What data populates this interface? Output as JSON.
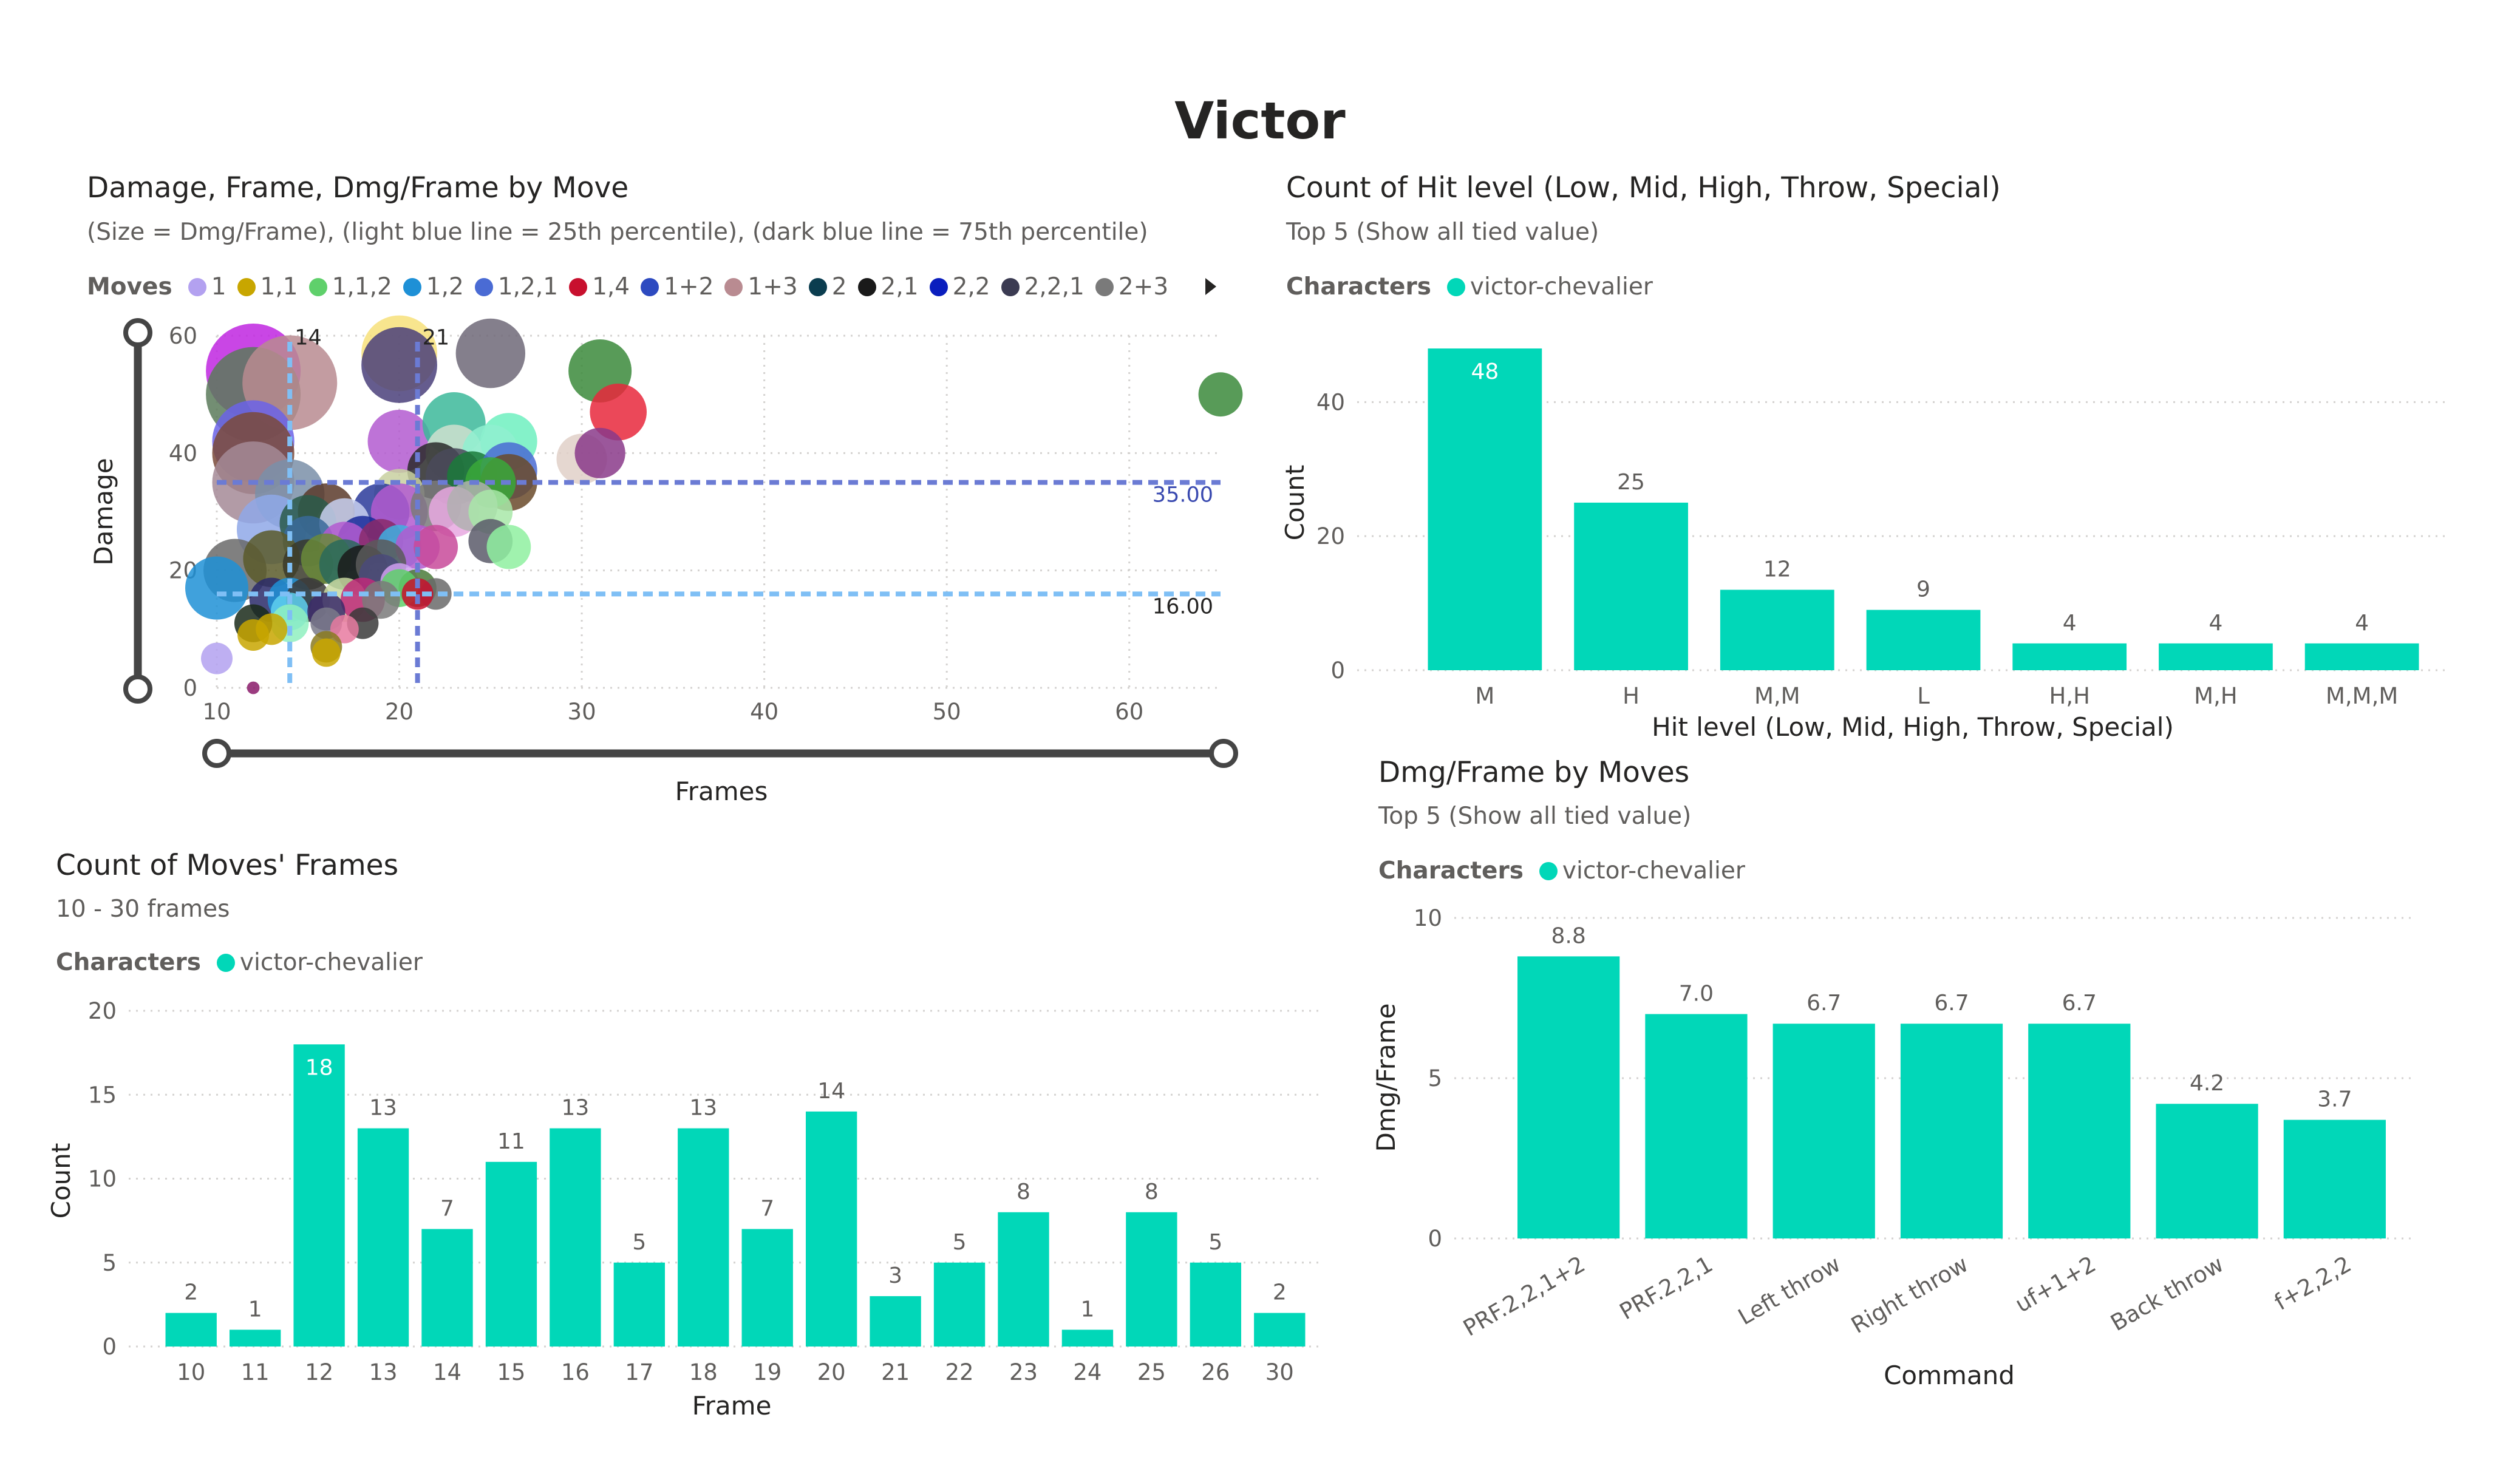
{
  "page_title": "Victor",
  "colors": {
    "teal": "#01d7b8",
    "grid": "#c8c6c4",
    "text": "#605e5c",
    "dark": "#252423",
    "light_blue": "#7fbff5",
    "dark_blue": "#6b7bd4"
  },
  "chart_data": [
    {
      "type": "scatter",
      "title": "Damage, Frame, Dmg/Frame by Move",
      "subtitle": "(Size = Dmg/Frame), (light blue line = 25th percentile), (dark blue line = 75th percentile)",
      "xlabel": "Frames",
      "ylabel": "Damage",
      "xlim": [
        10,
        65
      ],
      "ylim": [
        0,
        60
      ],
      "xticks": [
        "10",
        "20",
        "30",
        "40",
        "50",
        "60"
      ],
      "yticks": [
        "0",
        "20",
        "40",
        "60"
      ],
      "legend_title": "Moves",
      "legend": [
        {
          "name": "1",
          "color": "#b3a1f0"
        },
        {
          "name": "1,1",
          "color": "#c8a600"
        },
        {
          "name": "1,1,2",
          "color": "#5fd06b"
        },
        {
          "name": "1,2",
          "color": "#1e90d6"
        },
        {
          "name": "1,2,1",
          "color": "#4a6bd4"
        },
        {
          "name": "1,4",
          "color": "#c8102e"
        },
        {
          "name": "1+2",
          "color": "#2d4ac0"
        },
        {
          "name": "1+3",
          "color": "#b98b91"
        },
        {
          "name": "2",
          "color": "#0b3d4f"
        },
        {
          "name": "2,1",
          "color": "#1a1a1a"
        },
        {
          "name": "2,2",
          "color": "#0a1ebe"
        },
        {
          "name": "2,2,1",
          "color": "#3b3b52"
        },
        {
          "name": "2+3",
          "color": "#7a7a7a"
        }
      ],
      "reference_lines": [
        {
          "axis": "x",
          "value": 14,
          "label": "14",
          "color": "#7fbff5"
        },
        {
          "axis": "x",
          "value": 21,
          "label": "21",
          "color": "#6b7bd4"
        },
        {
          "axis": "y",
          "value": 35,
          "label": "35.00",
          "color": "#6b7bd4"
        },
        {
          "axis": "y",
          "value": 16,
          "label": "16.00",
          "color": "#7fbff5"
        }
      ],
      "points": [
        {
          "x": 12,
          "y": 54,
          "r": 3.0,
          "c": "#c026e0"
        },
        {
          "x": 12,
          "y": 50,
          "r": 3.0,
          "c": "#5b7a5a"
        },
        {
          "x": 14,
          "y": 52,
          "r": 3.0,
          "c": "#b98b91"
        },
        {
          "x": 12,
          "y": 42,
          "r": 2.6,
          "c": "#6b63e8"
        },
        {
          "x": 12,
          "y": 40,
          "r": 2.6,
          "c": "#7a4a3a"
        },
        {
          "x": 12,
          "y": 35,
          "r": 2.6,
          "c": "#a48a96"
        },
        {
          "x": 14,
          "y": 33,
          "r": 2.2,
          "c": "#7a8fa8"
        },
        {
          "x": 13,
          "y": 27,
          "r": 2.2,
          "c": "#8fa8e8"
        },
        {
          "x": 11,
          "y": 20,
          "r": 2.0,
          "c": "#6a6a6a"
        },
        {
          "x": 10,
          "y": 17,
          "r": 2.0,
          "c": "#1e90d6"
        },
        {
          "x": 10,
          "y": 5,
          "r": 1.0,
          "c": "#b3a1f0"
        },
        {
          "x": 20,
          "y": 57,
          "r": 2.4,
          "c": "#f7e07a"
        },
        {
          "x": 20,
          "y": 55,
          "r": 2.4,
          "c": "#4a3f7a"
        },
        {
          "x": 25,
          "y": 57,
          "r": 2.2,
          "c": "#6e6878"
        },
        {
          "x": 31,
          "y": 54,
          "r": 2.0,
          "c": "#3b8a3b"
        },
        {
          "x": 32,
          "y": 47,
          "r": 1.8,
          "c": "#e8283c"
        },
        {
          "x": 65,
          "y": 50,
          "r": 1.4,
          "c": "#3b8a3b"
        },
        {
          "x": 20,
          "y": 42,
          "r": 2.0,
          "c": "#b35ad0"
        },
        {
          "x": 23,
          "y": 45,
          "r": 2.0,
          "c": "#3cb89a"
        },
        {
          "x": 23,
          "y": 40,
          "r": 1.8,
          "c": "#cfe0cf"
        },
        {
          "x": 26,
          "y": 42,
          "r": 1.8,
          "c": "#6ef0c0"
        },
        {
          "x": 25,
          "y": 40,
          "r": 1.8,
          "c": "#8ff0d0"
        },
        {
          "x": 30,
          "y": 39,
          "r": 1.6,
          "c": "#e0d0c8"
        },
        {
          "x": 31,
          "y": 40,
          "r": 1.6,
          "c": "#8a3a8a"
        },
        {
          "x": 22,
          "y": 37,
          "r": 1.8,
          "c": "#2a2a2a"
        },
        {
          "x": 23,
          "y": 36,
          "r": 1.8,
          "c": "#4a4a5a"
        },
        {
          "x": 24,
          "y": 36,
          "r": 1.6,
          "c": "#1a7a3a"
        },
        {
          "x": 26,
          "y": 37,
          "r": 1.8,
          "c": "#4a6bd4"
        },
        {
          "x": 26,
          "y": 35,
          "r": 1.8,
          "c": "#6a4a2a"
        },
        {
          "x": 25,
          "y": 35,
          "r": 1.6,
          "c": "#3aa83a"
        },
        {
          "x": 20,
          "y": 33,
          "r": 1.6,
          "c": "#c8d0a0"
        },
        {
          "x": 19,
          "y": 30,
          "r": 1.8,
          "c": "#2a3a9a"
        },
        {
          "x": 20,
          "y": 30,
          "r": 1.8,
          "c": "#b35ad0"
        },
        {
          "x": 22,
          "y": 31,
          "r": 1.6,
          "c": "#7a7a7a"
        },
        {
          "x": 23,
          "y": 30,
          "r": 1.6,
          "c": "#e8a8e0"
        },
        {
          "x": 24,
          "y": 31,
          "r": 1.6,
          "c": "#b0b0b0"
        },
        {
          "x": 25,
          "y": 30,
          "r": 1.4,
          "c": "#a8e8a8"
        },
        {
          "x": 25,
          "y": 25,
          "r": 1.4,
          "c": "#5a5a6a"
        },
        {
          "x": 26,
          "y": 24,
          "r": 1.4,
          "c": "#8ff0a0"
        },
        {
          "x": 16,
          "y": 30,
          "r": 1.8,
          "c": "#5a3a2a"
        },
        {
          "x": 15,
          "y": 28,
          "r": 1.8,
          "c": "#2a5a4a"
        },
        {
          "x": 17,
          "y": 28,
          "r": 1.6,
          "c": "#c8d0f0"
        },
        {
          "x": 15,
          "y": 25,
          "r": 1.6,
          "c": "#3a6a9a"
        },
        {
          "x": 18,
          "y": 25,
          "r": 1.6,
          "c": "#1a2a9a"
        },
        {
          "x": 17,
          "y": 24,
          "r": 1.6,
          "c": "#b35ad0"
        },
        {
          "x": 19,
          "y": 25,
          "r": 1.4,
          "c": "#8a2a6a"
        },
        {
          "x": 20,
          "y": 24,
          "r": 1.4,
          "c": "#3fb0e0"
        },
        {
          "x": 21,
          "y": 24,
          "r": 1.4,
          "c": "#b35ad0"
        },
        {
          "x": 22,
          "y": 24,
          "r": 1.4,
          "c": "#c84a9a"
        },
        {
          "x": 13,
          "y": 22,
          "r": 1.8,
          "c": "#5a5a2a"
        },
        {
          "x": 15,
          "y": 21,
          "r": 1.6,
          "c": "#3a3a2a"
        },
        {
          "x": 16,
          "y": 22,
          "r": 1.6,
          "c": "#6a8a3a"
        },
        {
          "x": 17,
          "y": 21,
          "r": 1.6,
          "c": "#2a6a5a"
        },
        {
          "x": 18,
          "y": 20,
          "r": 1.6,
          "c": "#1a1a1a"
        },
        {
          "x": 19,
          "y": 21,
          "r": 1.6,
          "c": "#5a5a5a"
        },
        {
          "x": 19,
          "y": 19,
          "r": 1.4,
          "c": "#4a4a7a"
        },
        {
          "x": 20,
          "y": 18,
          "r": 1.2,
          "c": "#d0a0f0"
        },
        {
          "x": 21,
          "y": 17,
          "r": 1.2,
          "c": "#4a7a3a"
        },
        {
          "x": 20,
          "y": 17,
          "r": 1.2,
          "c": "#5fd06b"
        },
        {
          "x": 22,
          "y": 16,
          "r": 1.0,
          "c": "#6a6a6a"
        },
        {
          "x": 21,
          "y": 16,
          "r": 1.0,
          "c": "#c8102e"
        },
        {
          "x": 13,
          "y": 15,
          "r": 1.4,
          "c": "#2a2a6a"
        },
        {
          "x": 14,
          "y": 15,
          "r": 1.4,
          "c": "#1e90d6"
        },
        {
          "x": 15,
          "y": 15,
          "r": 1.4,
          "c": "#3a3a3a"
        },
        {
          "x": 17,
          "y": 15,
          "r": 1.4,
          "c": "#c8d8a0"
        },
        {
          "x": 18,
          "y": 15,
          "r": 1.4,
          "c": "#c02a7a"
        },
        {
          "x": 19,
          "y": 15,
          "r": 1.2,
          "c": "#7a7a7a"
        },
        {
          "x": 14,
          "y": 13,
          "r": 1.2,
          "c": "#5fd0f0"
        },
        {
          "x": 16,
          "y": 13,
          "r": 1.2,
          "c": "#3a2a6a"
        },
        {
          "x": 14,
          "y": 11,
          "r": 1.2,
          "c": "#8ff0c0"
        },
        {
          "x": 12,
          "y": 11,
          "r": 1.2,
          "c": "#1a2a1a"
        },
        {
          "x": 13,
          "y": 10,
          "r": 1.0,
          "c": "#c8a600"
        },
        {
          "x": 12,
          "y": 9,
          "r": 1.0,
          "c": "#c8a600"
        },
        {
          "x": 16,
          "y": 11,
          "r": 1.0,
          "c": "#7a7a8a"
        },
        {
          "x": 18,
          "y": 11,
          "r": 1.0,
          "c": "#3a3a3a"
        },
        {
          "x": 17,
          "y": 10,
          "r": 0.9,
          "c": "#e87aa0"
        },
        {
          "x": 16,
          "y": 7,
          "r": 1.0,
          "c": "#8a7a20"
        },
        {
          "x": 16,
          "y": 6,
          "r": 0.9,
          "c": "#c8a600"
        },
        {
          "x": 12,
          "y": 0,
          "r": 0.4,
          "c": "#8a1a6a"
        }
      ]
    },
    {
      "type": "bar",
      "title": "Count of Hit level (Low, Mid, High, Throw, Special)",
      "subtitle": "Top 5 (Show all tied value)",
      "legend_title": "Characters",
      "legend": [
        {
          "name": "victor-chevalier",
          "color": "#01d7b8"
        }
      ],
      "xlabel": "Hit level (Low, Mid, High, Throw, Special)",
      "ylabel": "Count",
      "ylim": [
        0,
        50
      ],
      "yticks": [
        0,
        20,
        40
      ],
      "categories": [
        "M",
        "H",
        "M,M",
        "L",
        "H,H",
        "M,H",
        "M,M,M"
      ],
      "values": [
        48,
        25,
        12,
        9,
        4,
        4,
        4
      ],
      "value_labels": [
        "48",
        "25",
        "12",
        "9",
        "4",
        "4",
        "4"
      ]
    },
    {
      "type": "bar",
      "title": "Dmg/Frame by Moves",
      "subtitle": "Top 5 (Show all tied value)",
      "legend_title": "Characters",
      "legend": [
        {
          "name": "victor-chevalier",
          "color": "#01d7b8"
        }
      ],
      "xlabel": "Command",
      "ylabel": "Dmg/Frame",
      "ylim": [
        0,
        10
      ],
      "yticks": [
        0,
        5,
        10
      ],
      "categories": [
        "PRF.2,2,1+2",
        "PRF.2,2,1",
        "Left throw",
        "Right throw",
        "uf+1+2",
        "Back throw",
        "f+2,2,2"
      ],
      "values": [
        8.8,
        7.0,
        6.7,
        6.7,
        6.7,
        4.2,
        3.7
      ],
      "value_labels": [
        "8.8",
        "7.0",
        "6.7",
        "6.7",
        "6.7",
        "4.2",
        "3.7"
      ]
    },
    {
      "type": "bar",
      "title": "Count of Moves' Frames",
      "subtitle": "10 - 30 frames",
      "legend_title": "Characters",
      "legend": [
        {
          "name": "victor-chevalier",
          "color": "#01d7b8"
        }
      ],
      "xlabel": "Frame",
      "ylabel": "Count",
      "ylim": [
        0,
        20
      ],
      "yticks": [
        0,
        5,
        10,
        15,
        20
      ],
      "categories": [
        "10",
        "11",
        "12",
        "13",
        "14",
        "15",
        "16",
        "17",
        "18",
        "19",
        "20",
        "21",
        "22",
        "23",
        "24",
        "25",
        "26",
        "30"
      ],
      "values": [
        2,
        1,
        18,
        13,
        7,
        11,
        13,
        5,
        13,
        7,
        14,
        3,
        5,
        8,
        1,
        8,
        5,
        2
      ],
      "value_labels": [
        "2",
        "1",
        "18",
        "13",
        "7",
        "11",
        "13",
        "5",
        "13",
        "7",
        "14",
        "3",
        "5",
        "8",
        "1",
        "8",
        "5",
        "2"
      ]
    }
  ]
}
